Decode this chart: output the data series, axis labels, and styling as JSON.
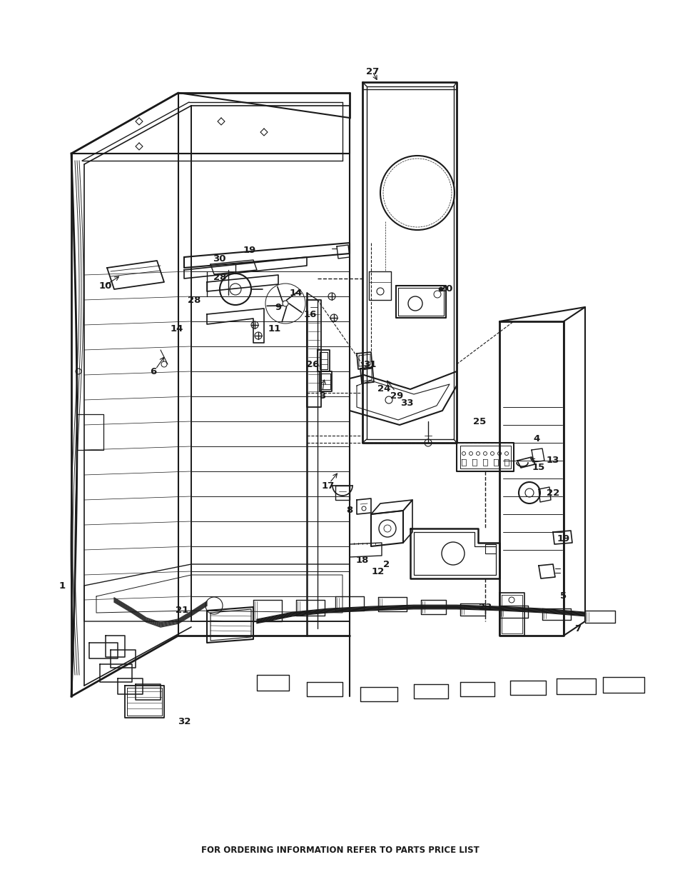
{
  "footer_text": "FOR ORDERING INFORMATION REFER TO PARTS PRICE LIST",
  "footer_fontsize": 8.5,
  "bg_color": "#ffffff",
  "line_color": "#1a1a1a",
  "fig_width": 9.54,
  "fig_height": 12.35,
  "dpi": 100
}
